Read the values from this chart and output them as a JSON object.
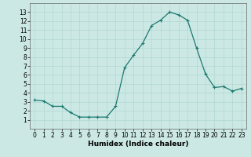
{
  "x": [
    0,
    1,
    2,
    3,
    4,
    5,
    6,
    7,
    8,
    9,
    10,
    11,
    12,
    13,
    14,
    15,
    16,
    17,
    18,
    19,
    20,
    21,
    22,
    23
  ],
  "y": [
    3.2,
    3.1,
    2.5,
    2.5,
    1.8,
    1.3,
    1.3,
    1.3,
    1.3,
    2.5,
    6.8,
    8.2,
    9.5,
    11.5,
    12.1,
    13.0,
    12.7,
    12.1,
    9.0,
    6.1,
    4.6,
    4.7,
    4.2,
    4.5
  ],
  "line_color": "#1a7a6e",
  "marker": "+",
  "marker_size": 3,
  "marker_linewidth": 0.8,
  "linewidth": 0.9,
  "xlabel": "Humidex (Indice chaleur)",
  "ylim": [
    0,
    14
  ],
  "xlim": [
    -0.5,
    23.5
  ],
  "yticks": [
    1,
    2,
    3,
    4,
    5,
    6,
    7,
    8,
    9,
    10,
    11,
    12,
    13
  ],
  "xticks": [
    0,
    1,
    2,
    3,
    4,
    5,
    6,
    7,
    8,
    9,
    10,
    11,
    12,
    13,
    14,
    15,
    16,
    17,
    18,
    19,
    20,
    21,
    22,
    23
  ],
  "bg_color": "#cce8e4",
  "grid_color": "#b0d8d2",
  "tick_fontsize": 5.5,
  "xlabel_fontsize": 6.5
}
